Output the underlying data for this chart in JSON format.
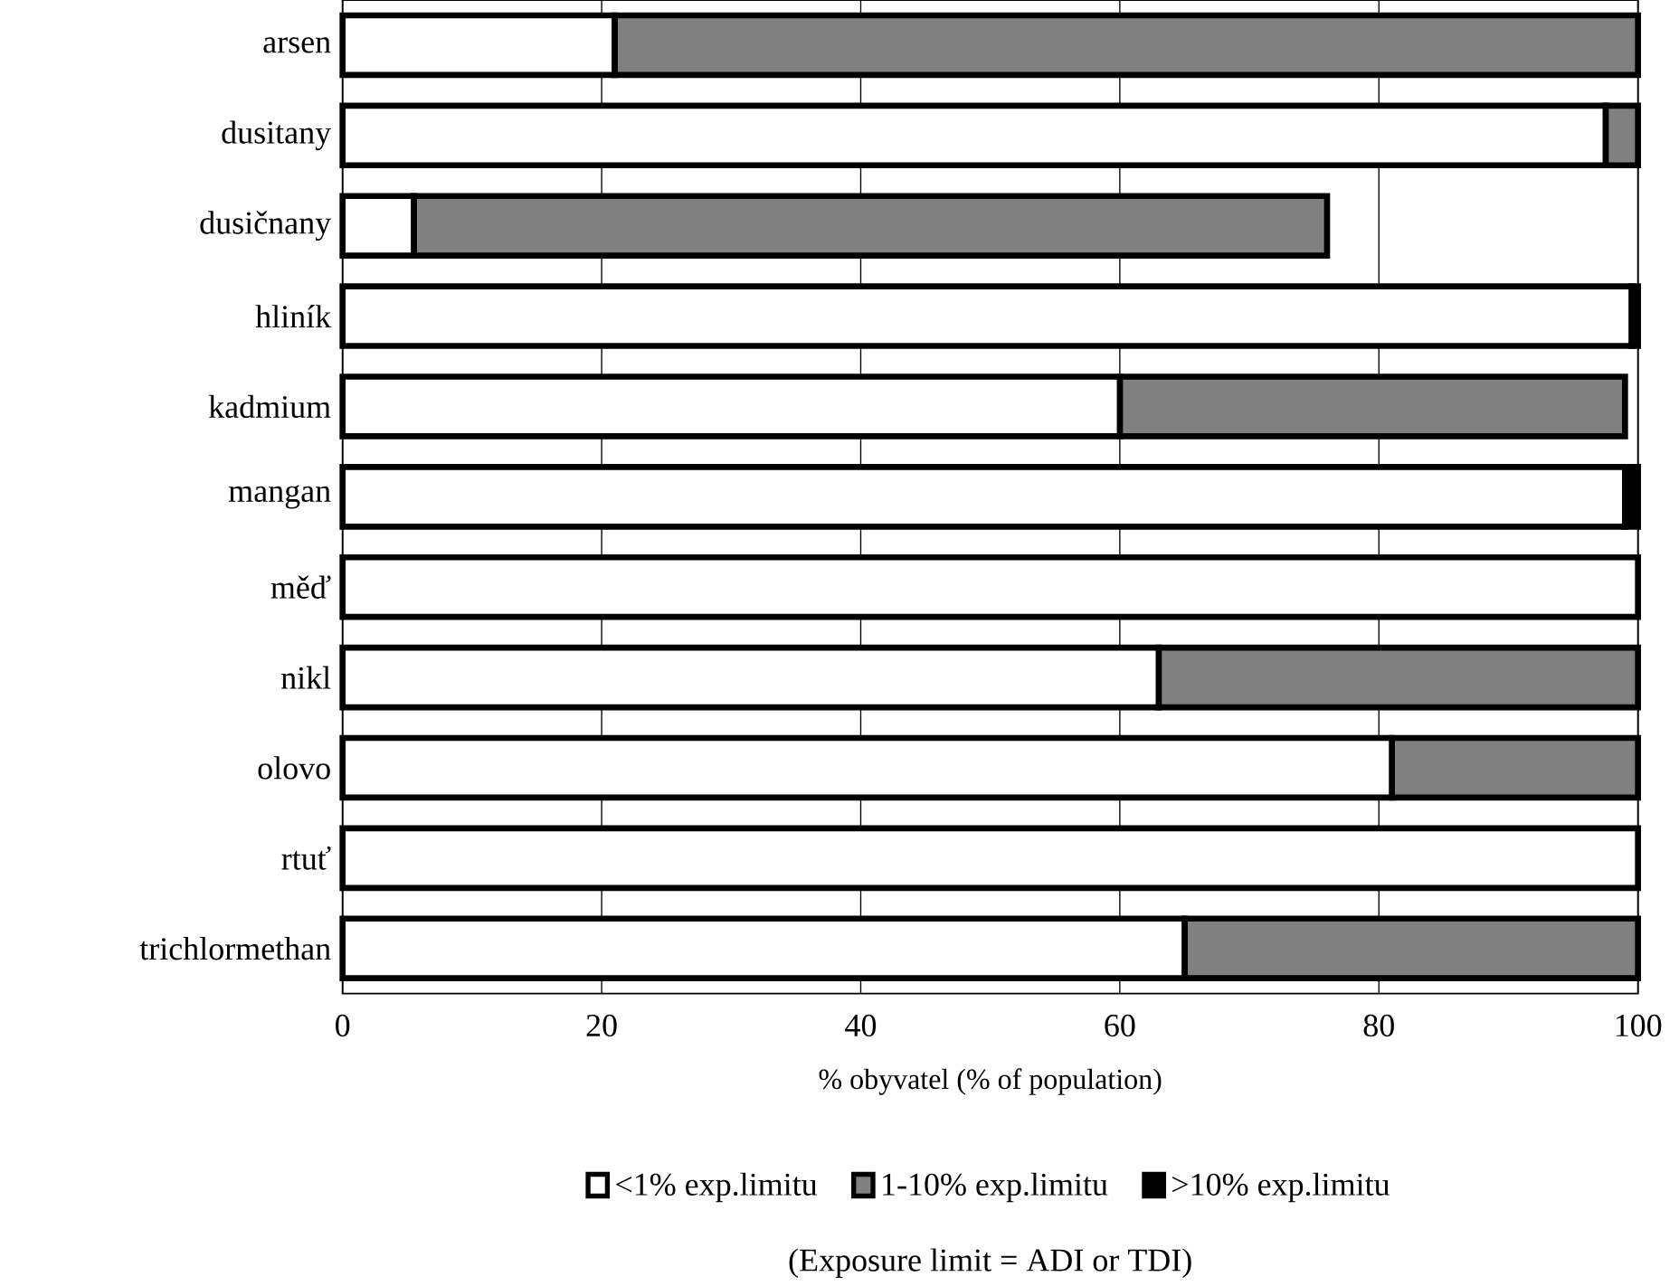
{
  "chart_data": {
    "type": "bar",
    "orientation": "horizontal",
    "stacked": true,
    "categories": [
      "arsen",
      "dusitany",
      "dusičnany",
      "hliník",
      "kadmium",
      "mangan",
      "měď",
      "nikl",
      "olovo",
      "rtuť",
      "trichlormethan"
    ],
    "series": [
      {
        "name": "<1% exp.limitu",
        "color": "#ffffff",
        "values": [
          21,
          97.5,
          5.5,
          99.5,
          60,
          99,
          100,
          63,
          81,
          100,
          65
        ]
      },
      {
        "name": "1-10% exp.limitu",
        "color": "#808080",
        "values": [
          79,
          2.5,
          70.5,
          0,
          39,
          0,
          0,
          37,
          19,
          0,
          35
        ]
      },
      {
        "name": ">10% exp.limitu",
        "color": "#000000",
        "values": [
          0,
          0,
          0,
          0.5,
          0,
          1,
          0,
          0,
          0,
          0,
          0
        ]
      }
    ],
    "xlim": [
      0,
      100
    ],
    "xticks": [
      0,
      20,
      40,
      60,
      80,
      100
    ],
    "grid": "x",
    "legend": "bottom",
    "xlabel": "% obyvatel (% of population)",
    "annotations": [
      "(Exposure limit = ADI or TDI)"
    ]
  }
}
